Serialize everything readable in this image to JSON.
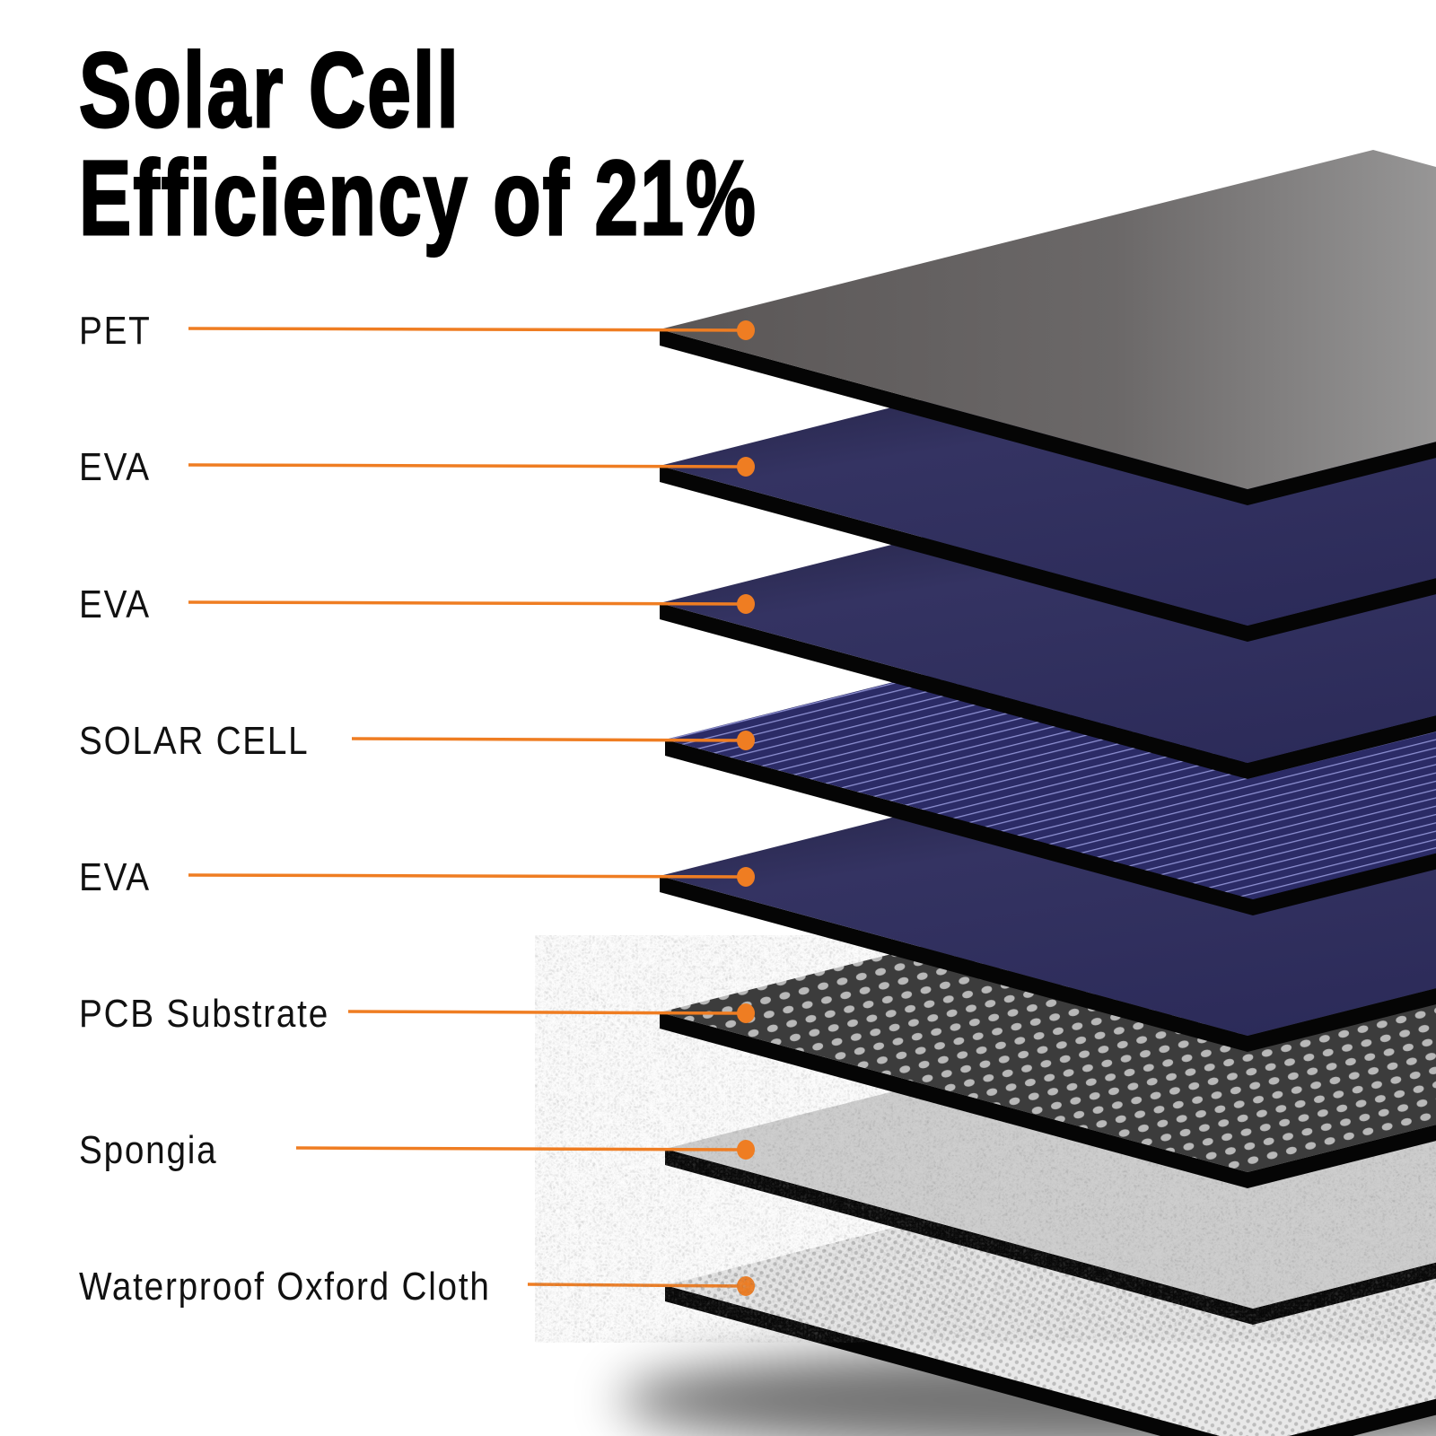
{
  "title": {
    "line1": "Solar Cell",
    "line2": "Efficiency of 21%"
  },
  "accent_color": "#ef7d22",
  "layers": [
    {
      "label": "PET",
      "material": "pet"
    },
    {
      "label": "EVA",
      "material": "eva"
    },
    {
      "label": "EVA",
      "material": "eva"
    },
    {
      "label": "SOLAR CELL",
      "material": "cell"
    },
    {
      "label": "EVA",
      "material": "eva"
    },
    {
      "label": "PCB Substrate",
      "material": "pcb"
    },
    {
      "label": "Spongia",
      "material": "sponge"
    },
    {
      "label": "Waterproof Oxford Cloth",
      "material": "cloth"
    }
  ]
}
